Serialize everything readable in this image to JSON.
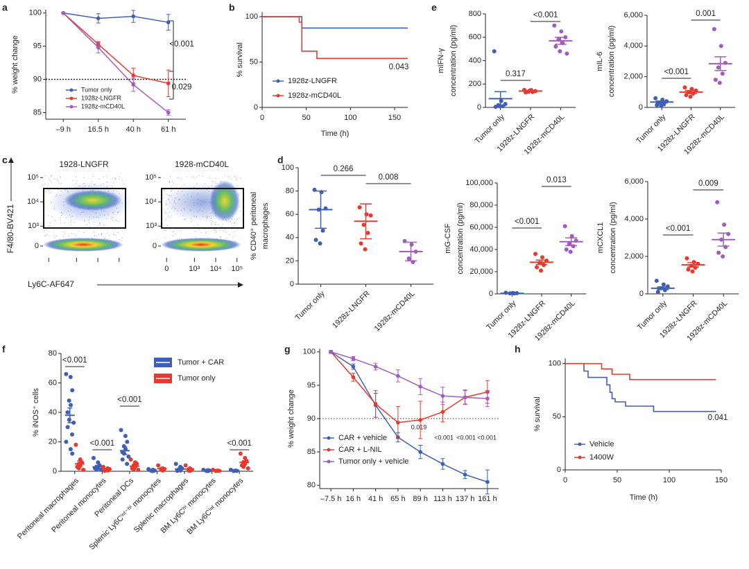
{
  "chart_data": [
    {
      "panel": "a",
      "type": "line",
      "ylabel": "% weight change",
      "categories": [
        "–9 h",
        "16.5 h",
        "40 h",
        "61 h"
      ],
      "ylim": [
        84,
        100.5
      ],
      "yticks": [
        85,
        90,
        95,
        100
      ],
      "threshold": 90,
      "legend": "lower left",
      "annotations": [
        "<0.001",
        "0.029"
      ],
      "series": [
        {
          "name": "Tumor only",
          "color": "#3f5fb5",
          "values": [
            100,
            99.2,
            99.5,
            98.6
          ],
          "errors": [
            0,
            0.7,
            0.9,
            1.2
          ]
        },
        {
          "name": "1928z-LNGFR",
          "color": "#e8392f",
          "values": [
            100,
            95.3,
            90.6,
            89.4
          ],
          "errors": [
            0,
            0.4,
            1.1,
            2
          ]
        },
        {
          "name": "1928z-mCD40L",
          "color": "#a25cc0",
          "values": [
            100,
            94.8,
            89.2,
            85
          ],
          "errors": [
            0,
            0.8,
            1,
            0.4
          ]
        }
      ]
    },
    {
      "panel": "b",
      "type": "step",
      "xlabel": "Time (h)",
      "ylabel": "% survival",
      "xlim": [
        0,
        165
      ],
      "xticks": [
        0,
        50,
        100,
        150
      ],
      "ylim": [
        0,
        105
      ],
      "yticks": [
        0,
        50,
        100
      ],
      "legend": "lower left",
      "annotations": [
        "0.043"
      ],
      "series": [
        {
          "name": "1928z-LNGFR",
          "color": "#3f5fb5",
          "x": [
            0,
            45,
            165
          ],
          "values": [
            100,
            87.5,
            87.5
          ]
        },
        {
          "name": "1928z-mCD40L",
          "color": "#e8392f",
          "x": [
            0,
            42,
            45,
            62,
            165
          ],
          "values": [
            100,
            94,
            62,
            54,
            54
          ]
        }
      ]
    },
    {
      "panel": "c",
      "type": "density",
      "titles": [
        "1928-LNGFR",
        "1928-mCD40L"
      ],
      "xlabel": "Ly6C-AF647",
      "ylabel": "F4/80-BV421",
      "xticks": [
        0,
        {
          "value": 1000,
          "label": "10³"
        },
        {
          "value": 10000,
          "label": "10⁴"
        },
        {
          "value": 100000,
          "label": "10⁵"
        }
      ],
      "yticks": [
        0,
        {
          "value": 1000,
          "label": "10³"
        },
        {
          "value": 10000,
          "label": "10⁴"
        },
        {
          "value": 100000,
          "label": "10⁵"
        }
      ]
    },
    {
      "panel": "d",
      "type": "dot",
      "ylabel": [
        "% CD40⁺ peritoneal",
        "macrophages"
      ],
      "categories": [
        "Tumor only",
        "1928z-LNGFR",
        "1928z-mCD40L"
      ],
      "colors": [
        "#3f5fb5",
        "#e8392f",
        "#a25cc0"
      ],
      "values": [
        64,
        54,
        28
      ],
      "errors": [
        16,
        15,
        8
      ],
      "points": [
        [
          81,
          79,
          65,
          64,
          46,
          38,
          35
        ],
        [
          66,
          60,
          59,
          51,
          44,
          35,
          30
        ],
        [
          37,
          34,
          28,
          22,
          19
        ]
      ],
      "ylim": [
        0,
        100
      ],
      "yticks": [
        0,
        20,
        40,
        60,
        80,
        100
      ],
      "annotations": [
        "0.266",
        "0.008"
      ]
    },
    {
      "panel": "e",
      "type": "dot",
      "ylabel": [
        "mIFN-γ",
        "concentration (pg/ml)"
      ],
      "categories": [
        "Tumor only",
        "1928z-LNGFR",
        "1928z-mCD40L"
      ],
      "colors": [
        "#3f5fb5",
        "#e8392f",
        "#a25cc0"
      ],
      "values": [
        75,
        140,
        570
      ],
      "errors": [
        60,
        6,
        30
      ],
      "points": [
        [
          480,
          55,
          30,
          20,
          10,
          5,
          10
        ],
        [
          150,
          148,
          140,
          135,
          132,
          128,
          145
        ],
        [
          700,
          650,
          600,
          580,
          550,
          520,
          480,
          460
        ]
      ],
      "ylim": [
        0,
        800
      ],
      "yticks": [
        0,
        200,
        400,
        600,
        800
      ],
      "annotations": [
        "0.317",
        "<0.001"
      ]
    },
    {
      "type": "dot",
      "ylabel": [
        "mIL-6",
        "concentration (pg/ml)"
      ],
      "categories": [
        "Tumor only",
        "1928z-LNGFR",
        "1928z-mCD40L"
      ],
      "colors": [
        "#3f5fb5",
        "#e8392f",
        "#a25cc0"
      ],
      "values": [
        350,
        1000,
        2850
      ],
      "errors": [
        70,
        100,
        450
      ],
      "points": [
        [
          600,
          500,
          400,
          300,
          200,
          150,
          100
        ],
        [
          1300,
          1200,
          1100,
          1000,
          900,
          800,
          700
        ],
        [
          5100,
          4000,
          2900,
          2600,
          2200,
          1800,
          1600
        ]
      ],
      "ylim": [
        0,
        6000
      ],
      "yticks": [
        0,
        {
          "value": 2000,
          "label": "2,000"
        },
        {
          "value": 4000,
          "label": "4,000"
        },
        {
          "value": 6000,
          "label": "6,000"
        }
      ],
      "annotations": [
        "<0.001",
        "0.001"
      ]
    },
    {
      "type": "dot",
      "ylabel": [
        "mG-CSF",
        "concentration (pg/ml)"
      ],
      "categories": [
        "Tumor only",
        "1928z-LNGFR",
        "1928z-mCD40L"
      ],
      "colors": [
        "#3f5fb5",
        "#e8392f",
        "#a25cc0"
      ],
      "values": [
        500,
        28500,
        47000
      ],
      "errors": [
        150,
        2000,
        3500
      ],
      "points": [
        [
          1000,
          800,
          600,
          500,
          400
        ],
        [
          36000,
          33000,
          30000,
          28000,
          26000,
          24000,
          21000
        ],
        [
          61000,
          52000,
          48000,
          45000,
          43000,
          40000,
          38000
        ]
      ],
      "ylim": [
        0,
        100000
      ],
      "yticks": [
        0,
        {
          "value": 20000,
          "label": "20,000"
        },
        {
          "value": 40000,
          "label": "40,000"
        },
        {
          "value": 60000,
          "label": "60,000"
        },
        {
          "value": 80000,
          "label": "80,000"
        },
        {
          "value": 100000,
          "label": "100,000"
        }
      ],
      "annotations": [
        "<0.001",
        "0.013"
      ]
    },
    {
      "type": "dot",
      "ylabel": [
        "mCXCL1",
        "concentration (pg/ml)"
      ],
      "categories": [
        "Tumor only",
        "1928z-LNGFR",
        "1928z-mCD40L"
      ],
      "colors": [
        "#3f5fb5",
        "#e8392f",
        "#a25cc0"
      ],
      "values": [
        300,
        1550,
        2900
      ],
      "errors": [
        70,
        120,
        350
      ],
      "points": [
        [
          700,
          500,
          400,
          300,
          200,
          100
        ],
        [
          1900,
          1700,
          1600,
          1500,
          1400,
          1300,
          1200
        ],
        [
          4900,
          3700,
          3200,
          2900,
          2500,
          2200,
          2000
        ]
      ],
      "ylim": [
        0,
        6000
      ],
      "yticks": [
        0,
        {
          "value": 2000,
          "label": "2,000"
        },
        {
          "value": 4000,
          "label": "4,000"
        },
        {
          "value": 6000,
          "label": "6,000"
        }
      ],
      "annotations": [
        "<0.001",
        "0.009"
      ]
    },
    {
      "panel": "f",
      "type": "dot",
      "ylabel": "% iNOS⁺ cells",
      "categories": [
        "Peritoneal macrophages",
        "Peritoneal monocytes",
        "Peritoneal DCs",
        "Splenic Ly6Cⁱⁿᵗ⁻ʰⁱ monocytes",
        "Splenic macrophages",
        "BM Ly6Cʰⁱ monocytes",
        "BM Ly6Cⁱⁿᵗ monocytes"
      ],
      "ylim": [
        0,
        80
      ],
      "yticks": [
        0,
        20,
        40,
        60,
        80
      ],
      "legend": "upper right",
      "annotations": [
        "<0.001",
        "<0.001",
        "<0.001",
        "<0.001"
      ],
      "series": [
        {
          "name": "Tumor + CAR",
          "color": "#3f5fb5",
          "values": [
            38,
            3,
            14,
            0.6,
            1.5,
            0.5,
            0.5
          ],
          "errors": [
            5,
            1,
            2.5,
            0.3,
            0.7,
            0.2,
            0.2
          ],
          "points": [
            [
              66,
              64,
              55,
              48,
              45,
              40,
              35,
              33,
              30,
              25,
              20,
              15,
              12
            ],
            [
              9,
              6,
              4,
              3,
              2,
              2,
              1,
              1
            ],
            [
              28,
              24,
              20,
              17,
              15,
              13,
              12,
              10,
              8,
              5
            ],
            [
              1.5,
              1,
              0.5,
              0.3,
              0.2
            ],
            [
              5,
              3,
              2,
              1,
              0.5,
              0.3
            ],
            [
              1,
              0.7,
              0.5,
              0.3,
              0.2
            ],
            [
              1,
              0.5,
              0.3,
              0.2
            ]
          ]
        },
        {
          "name": "Tumor only",
          "color": "#e8392f",
          "values": [
            5,
            1.3,
            3.5,
            1.8,
            1.5,
            0.5,
            6
          ],
          "errors": [
            2,
            0.4,
            0.8,
            0.6,
            0.7,
            0.2,
            1.1
          ],
          "points": [
            [
              18,
              8,
              6,
              5,
              4,
              3,
              2,
              1
            ],
            [
              3,
              2,
              1.5,
              1,
              0.5,
              0.3
            ],
            [
              8,
              6,
              5,
              4,
              3,
              2,
              1.5,
              1
            ],
            [
              4,
              2,
              1.5,
              1,
              0.5
            ],
            [
              4,
              2,
              1,
              0.5,
              0.3
            ],
            [
              1,
              0.5,
              0.3,
              0.2
            ],
            [
              12,
              9,
              7,
              6,
              5,
              4,
              3,
              2
            ]
          ]
        }
      ]
    },
    {
      "panel": "g",
      "type": "line",
      "ylabel": "% weight change",
      "categories": [
        "–7.5 h",
        "16 h",
        "41 h",
        "65 h",
        "89 h",
        "113 h",
        "137 h",
        "161 h"
      ],
      "ylim": [
        79.5,
        100.5
      ],
      "yticks": [
        80,
        85,
        90,
        95,
        100
      ],
      "threshold": 90,
      "legend": "lower left",
      "annotations": [
        "0.019",
        "<0.001",
        "<0.001",
        "<0.001"
      ],
      "series": [
        {
          "name": "CAR + vehicle",
          "color": "#3f5fb5",
          "values": [
            100,
            97.8,
            92,
            87.2,
            85,
            83.2,
            81.6,
            80.5
          ],
          "errors": [
            0.2,
            0.4,
            1.8,
            0.7,
            1,
            0.8,
            0.6,
            1.8
          ]
        },
        {
          "name": "CAR + L-NIL",
          "color": "#e8392f",
          "values": [
            100,
            96.2,
            92.2,
            89.4,
            89.8,
            91,
            93.2,
            94
          ],
          "errors": [
            0.2,
            0.6,
            2,
            2.4,
            2.8,
            1.5,
            1,
            1.7
          ]
        },
        {
          "name": "Tumor only + vehicle",
          "color": "#a25cc0",
          "values": [
            100,
            99,
            97.8,
            96.4,
            94.8,
            93.4,
            93.2,
            93
          ],
          "errors": [
            0.2,
            0.3,
            0.5,
            0.9,
            1.2,
            1.3,
            1.1,
            1.2
          ]
        }
      ]
    },
    {
      "panel": "h",
      "type": "step",
      "xlabel": "Time (h)",
      "ylabel": "% survival",
      "xlim": [
        0,
        150
      ],
      "xticks": [
        0,
        50,
        100,
        150
      ],
      "ylim": [
        0,
        105
      ],
      "yticks": [
        0,
        50,
        100
      ],
      "legend": "lower left",
      "annotations": [
        "0.041"
      ],
      "series": [
        {
          "name": "Vehicle",
          "color": "#3f5fb5",
          "x": [
            0,
            18,
            22,
            40,
            43,
            45,
            48,
            58,
            85,
            145
          ],
          "values": [
            100,
            93,
            87,
            80,
            73,
            67,
            64,
            60,
            55,
            55
          ]
        },
        {
          "name": "1400W",
          "color": "#e8392f",
          "x": [
            0,
            35,
            45,
            62,
            145
          ],
          "values": [
            100,
            95,
            90,
            85,
            85
          ]
        }
      ]
    }
  ]
}
